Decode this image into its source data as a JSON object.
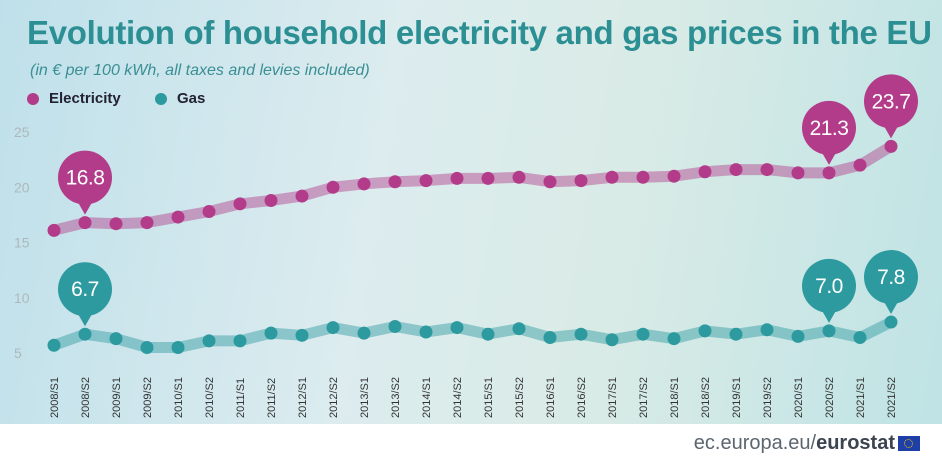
{
  "title": "Evolution of household electricity and gas prices in the EU",
  "subtitle": "(in € per 100 kWh, all taxes and levies included)",
  "footer": {
    "source_prefix": "ec.europa.eu/",
    "source_brand": "eurostat"
  },
  "colors": {
    "electricity": "#b23c8a",
    "gas": "#2d9a9f",
    "title": "#2c8f93",
    "axis": "#aeb8bc"
  },
  "chart_data": {
    "type": "line",
    "x": [
      "2008/S1",
      "2008/S2",
      "2009/S1",
      "2009/S2",
      "2010/S1",
      "2010/S2",
      "2011/S1",
      "2011/S2",
      "2012/S1",
      "2012/S2",
      "2013/S1",
      "2013/S2",
      "2014/S1",
      "2014/S2",
      "2015/S1",
      "2015/S2",
      "2016/S1",
      "2016/S2",
      "2017/S1",
      "2017/S2",
      "2018/S1",
      "2018/S2",
      "2019/S1",
      "2019/S2",
      "2020/S1",
      "2020/S2",
      "2021/S1",
      "2021/S2"
    ],
    "series": [
      {
        "name": "Electricity",
        "color": "#b23c8a",
        "values": [
          16.1,
          16.8,
          16.7,
          16.8,
          17.3,
          17.8,
          18.5,
          18.8,
          19.2,
          20.0,
          20.3,
          20.5,
          20.6,
          20.8,
          20.8,
          20.9,
          20.5,
          20.6,
          20.9,
          20.9,
          21.0,
          21.4,
          21.6,
          21.6,
          21.3,
          21.3,
          22.0,
          23.7
        ]
      },
      {
        "name": "Gas",
        "color": "#2d9a9f",
        "values": [
          5.7,
          6.7,
          6.3,
          5.5,
          5.5,
          6.1,
          6.1,
          6.8,
          6.6,
          7.3,
          6.8,
          7.4,
          6.9,
          7.3,
          6.7,
          7.2,
          6.4,
          6.7,
          6.2,
          6.7,
          6.3,
          7.0,
          6.7,
          7.1,
          6.5,
          7.0,
          6.4,
          7.8
        ]
      }
    ],
    "yticks": [
      5,
      10,
      15,
      20,
      25
    ],
    "ylim": [
      4.2,
      26.5
    ],
    "annotations": [
      {
        "series": "Electricity",
        "x": "2008/S2",
        "label": "16.8"
      },
      {
        "series": "Electricity",
        "x": "2020/S2",
        "label": "21.3"
      },
      {
        "series": "Electricity",
        "x": "2021/S2",
        "label": "23.7"
      },
      {
        "series": "Gas",
        "x": "2008/S2",
        "label": "6.7"
      },
      {
        "series": "Gas",
        "x": "2020/S2",
        "label": "7.0"
      },
      {
        "series": "Gas",
        "x": "2021/S2",
        "label": "7.8"
      }
    ],
    "legend": "top-left",
    "grid": false
  }
}
